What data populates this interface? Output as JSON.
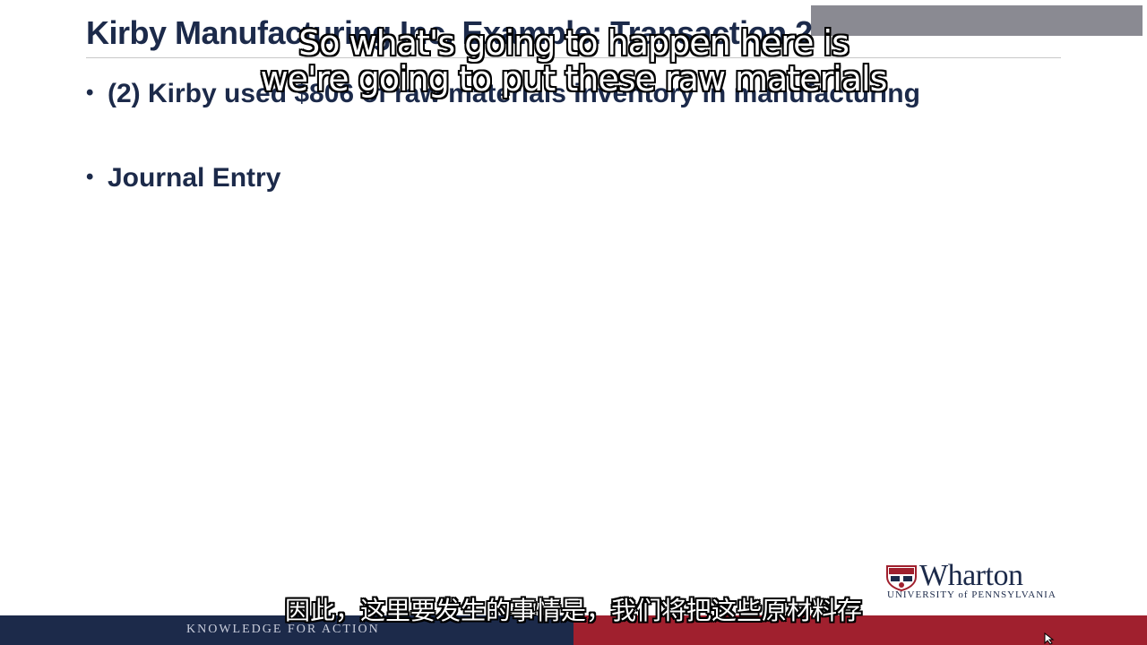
{
  "slide": {
    "title": "Kirby Manufacturing Inc. Example: Transaction 2",
    "bullets": [
      "(2) Kirby used $806 of raw materials inventory in manufacturing",
      "Journal Entry"
    ]
  },
  "subtitles": {
    "english_line_1": "So what's going to happen here is",
    "english_line_2": "we're going to put these raw materials",
    "chinese": "因此，这里要发生的事情是，我们将把这些原材料存"
  },
  "logo": {
    "wordmark": "Wharton",
    "institution": "UNIVERSITY of PENNSYLVANIA"
  },
  "footer": {
    "tagline": "KNOWLEDGE FOR ACTION"
  },
  "colors": {
    "navy": "#1c2a4a",
    "crimson": "#a0202e"
  }
}
